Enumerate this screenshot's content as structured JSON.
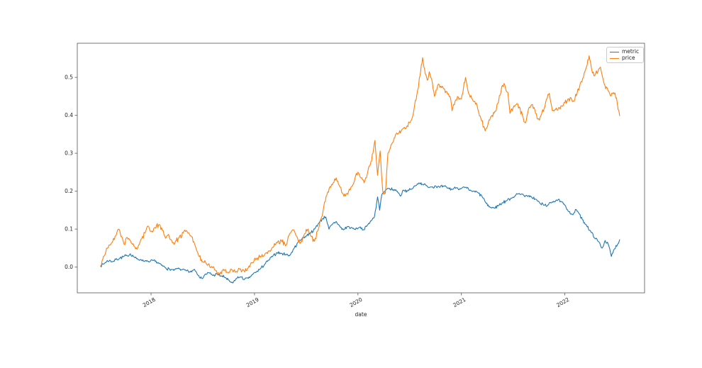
{
  "style": {
    "background": "#ffffff",
    "spine_color": "#757575",
    "text_color": "#262626",
    "tick_font_size": 7.5,
    "line_width": 1.1,
    "noise_seed": 7,
    "noise_step": 0.007,
    "noise": {
      "metric": 0.0045,
      "price": 0.0075
    }
  },
  "chart_data": {
    "type": "line",
    "title": "",
    "xlabel": "date",
    "ylabel": "",
    "grid": false,
    "xlim": [
      2017.287,
      2022.771
    ],
    "ylim": [
      -0.068,
      0.59
    ],
    "x_ticks": [
      2018,
      2019,
      2020,
      2021,
      2022
    ],
    "x_tick_labels": [
      "2018",
      "2019",
      "2020",
      "2021",
      "2022"
    ],
    "y_ticks": [
      0.0,
      0.1,
      0.2,
      0.3,
      0.4,
      0.5
    ],
    "y_tick_labels": [
      "0.0",
      "0.1",
      "0.2",
      "0.3",
      "0.4",
      "0.5"
    ],
    "legend": {
      "position": "upper right",
      "entries": [
        "metric",
        "price"
      ]
    },
    "series": [
      {
        "name": "metric",
        "color": "#1f77b4",
        "x": [
          2017.513,
          2017.54,
          2017.57,
          2017.6,
          2017.63,
          2017.66,
          2017.7,
          2017.73,
          2017.77,
          2017.8,
          2017.83,
          2017.86,
          2017.9,
          2017.94,
          2017.98,
          2018.02,
          2018.06,
          2018.1,
          2018.14,
          2018.18,
          2018.22,
          2018.26,
          2018.3,
          2018.34,
          2018.38,
          2018.42,
          2018.46,
          2018.49,
          2018.52,
          2018.56,
          2018.6,
          2018.64,
          2018.68,
          2018.72,
          2018.76,
          2018.79,
          2018.82,
          2018.86,
          2018.9,
          2018.94,
          2018.98,
          2019.02,
          2019.06,
          2019.1,
          2019.14,
          2019.18,
          2019.22,
          2019.26,
          2019.3,
          2019.34,
          2019.38,
          2019.42,
          2019.46,
          2019.5,
          2019.54,
          2019.58,
          2019.62,
          2019.66,
          2019.69,
          2019.72,
          2019.75,
          2019.79,
          2019.83,
          2019.86,
          2019.9,
          2019.93,
          2019.97,
          2020.01,
          2020.05,
          2020.09,
          2020.13,
          2020.16,
          2020.19,
          2020.21,
          2020.23,
          2020.26,
          2020.3,
          2020.34,
          2020.38,
          2020.41,
          2020.44,
          2020.48,
          2020.52,
          2020.56,
          2020.59,
          2020.63,
          2020.67,
          2020.71,
          2020.75,
          2020.79,
          2020.83,
          2020.87,
          2020.91,
          2020.95,
          2021.0,
          2021.04,
          2021.08,
          2021.12,
          2021.16,
          2021.2,
          2021.24,
          2021.28,
          2021.32,
          2021.36,
          2021.4,
          2021.44,
          2021.48,
          2021.52,
          2021.56,
          2021.6,
          2021.64,
          2021.68,
          2021.72,
          2021.76,
          2021.8,
          2021.84,
          2021.88,
          2021.92,
          2021.96,
          2022.0,
          2022.04,
          2022.08,
          2022.11,
          2022.14,
          2022.17,
          2022.21,
          2022.25,
          2022.29,
          2022.33,
          2022.36,
          2022.39,
          2022.42,
          2022.45,
          2022.48,
          2022.51,
          2022.53
        ],
        "y": [
          0.002,
          0.008,
          0.015,
          0.018,
          0.014,
          0.02,
          0.024,
          0.027,
          0.03,
          0.035,
          0.028,
          0.022,
          0.02,
          0.016,
          0.013,
          0.017,
          0.012,
          0.005,
          -0.002,
          -0.006,
          -0.009,
          -0.004,
          -0.007,
          -0.01,
          -0.013,
          -0.006,
          -0.022,
          -0.03,
          -0.02,
          -0.015,
          -0.022,
          -0.018,
          -0.024,
          -0.028,
          -0.038,
          -0.042,
          -0.031,
          -0.026,
          -0.033,
          -0.03,
          -0.02,
          -0.012,
          -0.004,
          0.008,
          0.018,
          0.03,
          0.038,
          0.036,
          0.033,
          0.03,
          0.048,
          0.065,
          0.075,
          0.082,
          0.09,
          0.1,
          0.115,
          0.128,
          0.132,
          0.1,
          0.112,
          0.12,
          0.105,
          0.098,
          0.107,
          0.103,
          0.1,
          0.104,
          0.098,
          0.11,
          0.122,
          0.133,
          0.185,
          0.15,
          0.19,
          0.2,
          0.207,
          0.204,
          0.2,
          0.187,
          0.203,
          0.2,
          0.206,
          0.215,
          0.222,
          0.218,
          0.213,
          0.211,
          0.214,
          0.21,
          0.213,
          0.208,
          0.205,
          0.209,
          0.207,
          0.21,
          0.202,
          0.2,
          0.196,
          0.186,
          0.168,
          0.157,
          0.155,
          0.163,
          0.17,
          0.175,
          0.182,
          0.188,
          0.194,
          0.19,
          0.186,
          0.184,
          0.179,
          0.168,
          0.163,
          0.164,
          0.172,
          0.177,
          0.173,
          0.163,
          0.146,
          0.138,
          0.152,
          0.14,
          0.125,
          0.11,
          0.094,
          0.076,
          0.066,
          0.05,
          0.07,
          0.06,
          0.028,
          0.048,
          0.06,
          0.072
        ]
      },
      {
        "name": "price",
        "color": "#ff7f0e",
        "x": [
          2017.513,
          2017.54,
          2017.57,
          2017.6,
          2017.63,
          2017.66,
          2017.69,
          2017.71,
          2017.74,
          2017.77,
          2017.8,
          2017.82,
          2017.85,
          2017.88,
          2017.91,
          2017.94,
          2017.97,
          2018.0,
          2018.04,
          2018.08,
          2018.11,
          2018.14,
          2018.17,
          2018.2,
          2018.23,
          2018.27,
          2018.31,
          2018.34,
          2018.38,
          2018.42,
          2018.46,
          2018.5,
          2018.54,
          2018.58,
          2018.62,
          2018.66,
          2018.7,
          2018.74,
          2018.78,
          2018.82,
          2018.86,
          2018.9,
          2018.94,
          2018.98,
          2019.02,
          2019.06,
          2019.1,
          2019.14,
          2019.18,
          2019.22,
          2019.26,
          2019.3,
          2019.34,
          2019.38,
          2019.41,
          2019.44,
          2019.48,
          2019.52,
          2019.55,
          2019.58,
          2019.61,
          2019.64,
          2019.67,
          2019.7,
          2019.73,
          2019.76,
          2019.79,
          2019.82,
          2019.85,
          2019.88,
          2019.91,
          2019.94,
          2019.97,
          2020.0,
          2020.03,
          2020.06,
          2020.09,
          2020.12,
          2020.145,
          2020.165,
          2020.19,
          2020.215,
          2020.24,
          2020.265,
          2020.29,
          2020.32,
          2020.35,
          2020.39,
          2020.43,
          2020.47,
          2020.51,
          2020.54,
          2020.57,
          2020.6,
          2020.625,
          2020.65,
          2020.67,
          2020.69,
          2020.72,
          2020.74,
          2020.77,
          2020.8,
          2020.83,
          2020.86,
          2020.89,
          2020.91,
          2020.94,
          2020.97,
          2021.0,
          2021.04,
          2021.07,
          2021.1,
          2021.13,
          2021.16,
          2021.19,
          2021.23,
          2021.26,
          2021.29,
          2021.33,
          2021.36,
          2021.39,
          2021.42,
          2021.45,
          2021.47,
          2021.5,
          2021.53,
          2021.56,
          2021.59,
          2021.62,
          2021.65,
          2021.68,
          2021.71,
          2021.74,
          2021.77,
          2021.8,
          2021.83,
          2021.85,
          2021.88,
          2021.91,
          2021.94,
          2021.97,
          2022.0,
          2022.03,
          2022.06,
          2022.09,
          2022.12,
          2022.15,
          2022.18,
          2022.21,
          2022.235,
          2022.26,
          2022.29,
          2022.32,
          2022.345,
          2022.38,
          2022.41,
          2022.44,
          2022.47,
          2022.5,
          2022.53
        ],
        "y": [
          0.004,
          0.028,
          0.05,
          0.058,
          0.068,
          0.082,
          0.1,
          0.08,
          0.06,
          0.078,
          0.07,
          0.06,
          0.048,
          0.058,
          0.075,
          0.09,
          0.108,
          0.094,
          0.104,
          0.112,
          0.096,
          0.076,
          0.086,
          0.07,
          0.063,
          0.077,
          0.09,
          0.096,
          0.082,
          0.062,
          0.03,
          0.014,
          0.006,
          0.0,
          -0.008,
          -0.018,
          -0.006,
          -0.014,
          -0.007,
          -0.013,
          -0.006,
          -0.011,
          -0.002,
          0.012,
          0.022,
          0.028,
          0.034,
          0.042,
          0.052,
          0.064,
          0.07,
          0.056,
          0.088,
          0.098,
          0.08,
          0.062,
          0.085,
          0.1,
          0.08,
          0.068,
          0.095,
          0.125,
          0.16,
          0.19,
          0.212,
          0.222,
          0.235,
          0.215,
          0.195,
          0.187,
          0.2,
          0.212,
          0.232,
          0.25,
          0.235,
          0.222,
          0.245,
          0.27,
          0.3,
          0.334,
          0.242,
          0.306,
          0.2,
          0.194,
          0.3,
          0.322,
          0.34,
          0.352,
          0.363,
          0.37,
          0.385,
          0.412,
          0.455,
          0.505,
          0.552,
          0.51,
          0.493,
          0.515,
          0.486,
          0.45,
          0.478,
          0.477,
          0.47,
          0.462,
          0.45,
          0.412,
          0.438,
          0.448,
          0.443,
          0.5,
          0.458,
          0.445,
          0.437,
          0.415,
          0.39,
          0.359,
          0.38,
          0.398,
          0.41,
          0.437,
          0.475,
          0.48,
          0.46,
          0.405,
          0.42,
          0.428,
          0.422,
          0.4,
          0.38,
          0.418,
          0.428,
          0.415,
          0.39,
          0.4,
          0.418,
          0.445,
          0.458,
          0.412,
          0.415,
          0.42,
          0.425,
          0.433,
          0.443,
          0.446,
          0.437,
          0.46,
          0.485,
          0.5,
          0.528,
          0.557,
          0.52,
          0.505,
          0.515,
          0.527,
          0.483,
          0.472,
          0.452,
          0.46,
          0.446,
          0.399
        ]
      }
    ]
  }
}
